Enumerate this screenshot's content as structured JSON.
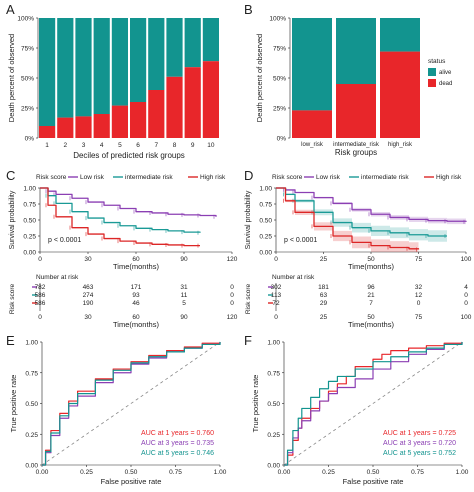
{
  "colors": {
    "teal": "#12948f",
    "red": "#e8262a",
    "purple": "#8b3fb3",
    "teal_km": "#1a9a96",
    "red_km": "#dc2626",
    "grid": "#ececec",
    "text": "#222222",
    "gray": "#888888"
  },
  "panels": [
    {
      "letter": "A"
    },
    {
      "letter": "B"
    },
    {
      "letter": "C"
    },
    {
      "letter": "D"
    },
    {
      "letter": "E"
    },
    {
      "letter": "F"
    }
  ],
  "chart_data": [
    {
      "id": "A",
      "type": "bar",
      "stacked": true,
      "xlabel": "Deciles of predicted risk groups",
      "ylabel": "Death percent of observed",
      "categories": [
        "1",
        "2",
        "3",
        "4",
        "5",
        "6",
        "7",
        "8",
        "9",
        "10"
      ],
      "yticks": [
        "0%",
        "25%",
        "50%",
        "75%",
        "100%"
      ],
      "ylim": [
        0,
        100
      ],
      "series": [
        {
          "name": "dead",
          "values": [
            10,
            17,
            18,
            20,
            27,
            30,
            40,
            51,
            59,
            64
          ]
        },
        {
          "name": "alive",
          "values": [
            90,
            83,
            82,
            80,
            73,
            70,
            60,
            49,
            41,
            36
          ]
        }
      ]
    },
    {
      "id": "B",
      "type": "bar",
      "stacked": true,
      "xlabel": "Risk groups",
      "ylabel": "Death percent of observed",
      "categories": [
        "low_risk",
        "intermediate_risk",
        "high_risk"
      ],
      "yticks": [
        "0%",
        "25%",
        "50%",
        "75%",
        "100%"
      ],
      "ylim": [
        0,
        100
      ],
      "legend": {
        "title": "status",
        "labels": [
          "alive",
          "dead"
        ],
        "position": "right"
      },
      "series": [
        {
          "name": "dead",
          "values": [
            23,
            45,
            72
          ]
        },
        {
          "name": "alive",
          "values": [
            77,
            55,
            28
          ]
        }
      ]
    },
    {
      "id": "C",
      "type": "line",
      "xlabel": "Time(months)",
      "ylabel": "Survival probability",
      "xticks": [
        "0",
        "30",
        "60",
        "90",
        "120"
      ],
      "yticks": [
        "0.00",
        "0.25",
        "0.50",
        "0.75",
        "1.00"
      ],
      "xlim": [
        0,
        120
      ],
      "ylim": [
        0,
        1
      ],
      "legend": {
        "title": "Risk score",
        "labels": [
          "Low risk",
          "intermediate risk",
          "High risk"
        ],
        "position": "top"
      },
      "pvalue": "p < 0.0001",
      "series": [
        {
          "name": "Low risk",
          "x": [
            0,
            5,
            10,
            20,
            30,
            40,
            50,
            60,
            70,
            80,
            90,
            100,
            110
          ],
          "y": [
            1.0,
            0.95,
            0.9,
            0.84,
            0.78,
            0.73,
            0.68,
            0.63,
            0.61,
            0.59,
            0.58,
            0.57,
            0.55
          ]
        },
        {
          "name": "intermediate risk",
          "x": [
            0,
            5,
            10,
            20,
            30,
            40,
            50,
            60,
            70,
            80,
            90,
            100
          ],
          "y": [
            1.0,
            0.88,
            0.76,
            0.63,
            0.53,
            0.46,
            0.41,
            0.37,
            0.35,
            0.33,
            0.31,
            0.3
          ]
        },
        {
          "name": "High risk",
          "x": [
            0,
            5,
            10,
            20,
            30,
            40,
            50,
            60,
            70,
            80,
            90,
            100
          ],
          "y": [
            1.0,
            0.73,
            0.55,
            0.38,
            0.28,
            0.21,
            0.17,
            0.14,
            0.12,
            0.11,
            0.1,
            0.1
          ]
        }
      ],
      "risk_table": {
        "title": "Number at risk",
        "ylabel": "Risk score",
        "times": [
          "0",
          "30",
          "60",
          "90",
          "120"
        ],
        "rows": [
          [
            "782",
            "463",
            "171",
            "31",
            "0"
          ],
          [
            "586",
            "274",
            "93",
            "11",
            "0"
          ],
          [
            "586",
            "190",
            "46",
            "5",
            "0"
          ]
        ]
      }
    },
    {
      "id": "D",
      "type": "line",
      "xlabel": "Time(months)",
      "ylabel": "Survival probability",
      "xticks": [
        "0",
        "25",
        "50",
        "75",
        "100"
      ],
      "yticks": [
        "0.00",
        "0.25",
        "0.50",
        "0.75",
        "1.00"
      ],
      "xlim": [
        0,
        100
      ],
      "ylim": [
        0,
        1
      ],
      "legend": {
        "title": "Risk score",
        "labels": [
          "Low risk",
          "intermediate risk",
          "High risk"
        ],
        "position": "top"
      },
      "pvalue": "p < 0.0001",
      "series": [
        {
          "name": "Low risk",
          "x": [
            0,
            5,
            10,
            20,
            30,
            40,
            50,
            60,
            70,
            80,
            90,
            100
          ],
          "y": [
            1.0,
            0.97,
            0.93,
            0.85,
            0.76,
            0.66,
            0.59,
            0.54,
            0.51,
            0.49,
            0.48,
            0.47
          ],
          "ci": 0.07
        },
        {
          "name": "intermediate risk",
          "x": [
            0,
            5,
            10,
            20,
            30,
            40,
            50,
            60,
            70,
            80,
            90
          ],
          "y": [
            1.0,
            0.9,
            0.8,
            0.62,
            0.46,
            0.38,
            0.33,
            0.3,
            0.27,
            0.25,
            0.25
          ],
          "ci": 0.1
        },
        {
          "name": "High risk",
          "x": [
            0,
            5,
            10,
            20,
            30,
            40,
            50,
            60,
            70,
            75
          ],
          "y": [
            1.0,
            0.8,
            0.62,
            0.4,
            0.25,
            0.15,
            0.1,
            0.07,
            0.05,
            0.04
          ],
          "ci": 0.09
        }
      ],
      "risk_table": {
        "title": "Number at risk",
        "ylabel": "Risk score",
        "times": [
          "0",
          "25",
          "50",
          "75",
          "100"
        ],
        "rows": [
          [
            "302",
            "181",
            "96",
            "32",
            "4"
          ],
          [
            "113",
            "63",
            "21",
            "12",
            "0"
          ],
          [
            "72",
            "29",
            "7",
            "0",
            "0"
          ]
        ]
      }
    },
    {
      "id": "E",
      "type": "line",
      "xlabel": "False positive rate",
      "ylabel": "True positive rate",
      "ticks": [
        "0.00",
        "0.25",
        "0.50",
        "0.75",
        "1.00"
      ],
      "xlim": [
        0,
        1
      ],
      "ylim": [
        0,
        1
      ],
      "auc": [
        "AUC at 1 years = 0.760",
        "AUC at 3 years = 0.735",
        "AUC at 5 years = 0.746"
      ],
      "series": [
        {
          "name": "1 years",
          "x": [
            0,
            0.02,
            0.05,
            0.1,
            0.15,
            0.2,
            0.3,
            0.4,
            0.5,
            0.6,
            0.7,
            0.8,
            0.9,
            1
          ],
          "y": [
            0,
            0.12,
            0.28,
            0.42,
            0.52,
            0.6,
            0.7,
            0.78,
            0.84,
            0.89,
            0.93,
            0.96,
            0.99,
            1
          ]
        },
        {
          "name": "3 years",
          "x": [
            0,
            0.02,
            0.05,
            0.1,
            0.15,
            0.2,
            0.3,
            0.4,
            0.5,
            0.6,
            0.7,
            0.8,
            0.9,
            1
          ],
          "y": [
            0,
            0.1,
            0.24,
            0.38,
            0.48,
            0.56,
            0.67,
            0.75,
            0.82,
            0.87,
            0.92,
            0.95,
            0.98,
            1
          ]
        },
        {
          "name": "5 years",
          "x": [
            0,
            0.02,
            0.05,
            0.1,
            0.15,
            0.2,
            0.3,
            0.4,
            0.5,
            0.6,
            0.7,
            0.8,
            0.9,
            1
          ],
          "y": [
            0,
            0.11,
            0.26,
            0.4,
            0.5,
            0.58,
            0.69,
            0.77,
            0.83,
            0.88,
            0.92,
            0.95,
            0.98,
            1
          ]
        }
      ]
    },
    {
      "id": "F",
      "type": "line",
      "xlabel": "False positive rate",
      "ylabel": "True positive rate",
      "ticks": [
        "0.00",
        "0.25",
        "0.50",
        "0.75",
        "1.00"
      ],
      "xlim": [
        0,
        1
      ],
      "ylim": [
        0,
        1
      ],
      "auc": [
        "AUC at 1 years = 0.725",
        "AUC at 3 years = 0.720",
        "AUC at 5 years = 0.752"
      ],
      "series": [
        {
          "name": "1 years",
          "x": [
            0,
            0.02,
            0.05,
            0.08,
            0.1,
            0.15,
            0.2,
            0.25,
            0.3,
            0.35,
            0.4,
            0.5,
            0.55,
            0.6,
            0.7,
            0.8,
            0.9,
            1
          ],
          "y": [
            0,
            0.08,
            0.2,
            0.3,
            0.38,
            0.46,
            0.52,
            0.6,
            0.66,
            0.72,
            0.8,
            0.86,
            0.9,
            0.93,
            0.95,
            0.97,
            0.99,
            1
          ]
        },
        {
          "name": "3 years",
          "x": [
            0,
            0.02,
            0.05,
            0.08,
            0.1,
            0.15,
            0.2,
            0.25,
            0.3,
            0.4,
            0.5,
            0.6,
            0.7,
            0.8,
            0.9,
            1
          ],
          "y": [
            0,
            0.1,
            0.22,
            0.3,
            0.36,
            0.44,
            0.52,
            0.58,
            0.63,
            0.7,
            0.78,
            0.84,
            0.9,
            0.94,
            0.98,
            1
          ]
        },
        {
          "name": "5 years",
          "x": [
            0,
            0.02,
            0.05,
            0.08,
            0.1,
            0.15,
            0.2,
            0.25,
            0.3,
            0.4,
            0.5,
            0.6,
            0.7,
            0.8,
            0.9,
            1
          ],
          "y": [
            0,
            0.12,
            0.28,
            0.38,
            0.46,
            0.55,
            0.62,
            0.68,
            0.72,
            0.78,
            0.84,
            0.88,
            0.92,
            0.95,
            0.98,
            1
          ]
        }
      ]
    }
  ]
}
